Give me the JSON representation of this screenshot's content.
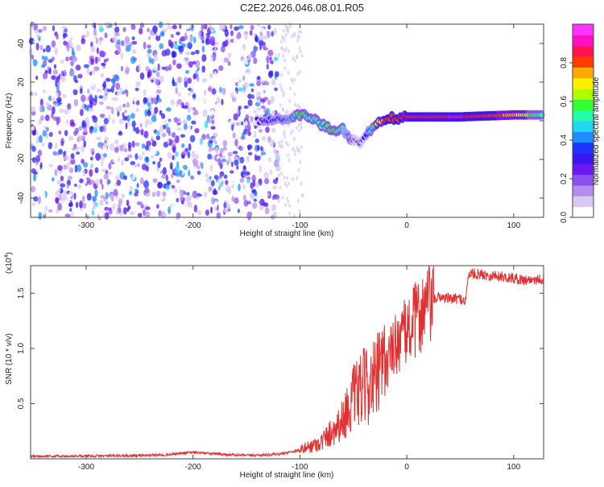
{
  "title": "C2E2.2026.046.08.01.R05",
  "colors": {
    "frame": "#444444",
    "snr_line": "#e03030",
    "cmap": [
      "#ffffff",
      "#d9c8f2",
      "#b58df0",
      "#8c4ff0",
      "#6a18ee",
      "#3a16f0",
      "#1d35ff",
      "#1f8dff",
      "#20d8f2",
      "#22ffa8",
      "#33ff33",
      "#b0ff00",
      "#fff000",
      "#ffaa00",
      "#ff3b00",
      "#ff1450",
      "#ff10c0",
      "#ff33ff"
    ]
  },
  "chart_data": [
    {
      "type": "heatmap",
      "title": "C2E2.2026.046.08.01.R05",
      "xlabel": "Height of straight line (km)",
      "ylabel": "Frequency (Hz)",
      "xlim": [
        -352,
        128
      ],
      "ylim": [
        -50,
        50
      ],
      "xticks": [
        -300,
        -200,
        -100,
        0,
        100
      ],
      "xtick_labels": [
        "-300",
        "-200",
        "-100",
        "0",
        "100"
      ],
      "yticks": [
        -40,
        -20,
        0,
        20,
        40
      ],
      "ytick_labels": [
        "-40",
        "-20",
        "0",
        "20",
        "40"
      ],
      "colorbar": {
        "label": "Normalized spectral amplitude",
        "range": [
          0,
          1
        ],
        "ticks": [
          0.0,
          0.2,
          0.4,
          0.6,
          0.8
        ],
        "tick_labels": [
          "0.0",
          "0.2",
          "0.4",
          "0.6",
          "0.8"
        ]
      },
      "features": [
        {
          "region": "noise",
          "x_range": [
            -352,
            -120
          ],
          "freq_range": [
            -50,
            50
          ],
          "amplitude": 0.25
        },
        {
          "region": "ridge",
          "points": [
            [
              -140,
              0
            ],
            [
              -110,
              1
            ],
            [
              -100,
              3
            ],
            [
              -90,
              2
            ],
            [
              -80,
              -2
            ],
            [
              -70,
              -5
            ],
            [
              -60,
              -4
            ],
            [
              -55,
              -8
            ],
            [
              -50,
              -10
            ],
            [
              -45,
              -12
            ],
            [
              -40,
              -8
            ],
            [
              -30,
              -2
            ],
            [
              -20,
              1
            ],
            [
              0,
              2
            ],
            [
              50,
              2
            ],
            [
              100,
              3
            ],
            [
              128,
              3
            ]
          ],
          "amplitude": [
            0.3,
            0.4,
            0.6,
            0.5,
            0.5,
            0.6,
            0.5,
            0.4,
            0.3,
            0.3,
            0.3,
            0.6,
            0.8,
            0.85,
            0.9,
            0.75,
            0.5
          ]
        }
      ]
    },
    {
      "type": "line",
      "xlabel": "Height of straight line (km)",
      "ylabel": "SNR (10 * v/v)",
      "scale_label": "(x10",
      "scale_exp": "4",
      "scale_close": ")",
      "xlim": [
        -352,
        128
      ],
      "ylim": [
        0,
        17500
      ],
      "xticks": [
        -300,
        -200,
        -100,
        0,
        100
      ],
      "xtick_labels": [
        "-300",
        "-200",
        "-100",
        "0",
        "100"
      ],
      "yticks": [
        5000,
        10000,
        15000
      ],
      "ytick_labels": [
        "0.5",
        "1.0",
        "1.5"
      ],
      "series": [
        {
          "name": "SNR",
          "x": [
            -352,
            -300,
            -250,
            -220,
            -200,
            -180,
            -150,
            -120,
            -100,
            -80,
            -70,
            -60,
            -50,
            -40,
            -30,
            -20,
            -10,
            0,
            10,
            20,
            30,
            40,
            50,
            55,
            58,
            70,
            90,
            110,
            128
          ],
          "y": [
            200,
            250,
            300,
            400,
            600,
            450,
            300,
            400,
            800,
            1500,
            2500,
            3500,
            5500,
            6500,
            7000,
            8500,
            10500,
            11500,
            12800,
            14000,
            14700,
            14500,
            14500,
            14300,
            16800,
            16700,
            16500,
            16200,
            16300
          ]
        }
      ]
    }
  ]
}
